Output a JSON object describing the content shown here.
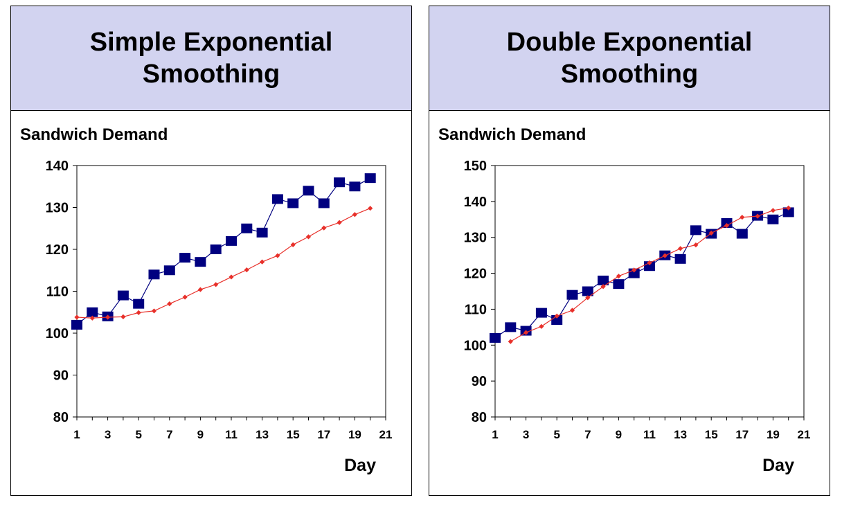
{
  "panels": [
    {
      "title_lines": [
        "Simple Exponential",
        "Smoothing"
      ],
      "subtitle": "Sandwich Demand"
    },
    {
      "title_lines": [
        "Double Exponential",
        "Smoothing"
      ],
      "subtitle": "Sandwich Demand"
    }
  ],
  "colors": {
    "header_bg": "#d2d3f0",
    "actual": "#000080",
    "forecast": "#e8302a"
  },
  "chart_data": [
    {
      "type": "line",
      "xlabel": "Day",
      "ylabel": "",
      "xlim": [
        1,
        21
      ],
      "ylim": [
        80,
        140
      ],
      "xticks": [
        1,
        3,
        5,
        7,
        9,
        11,
        13,
        15,
        17,
        19,
        21
      ],
      "yticks": [
        80,
        90,
        100,
        110,
        120,
        130,
        140
      ],
      "grid": false,
      "series": [
        {
          "marker": "square",
          "color": "#000080",
          "x": [
            1,
            2,
            3,
            4,
            5,
            6,
            7,
            8,
            9,
            10,
            11,
            12,
            13,
            14,
            15,
            16,
            17,
            18,
            19,
            20
          ],
          "values": [
            102,
            105,
            104,
            109,
            107,
            114,
            115,
            118,
            117,
            120,
            122,
            125,
            124,
            132,
            131,
            134,
            131,
            136,
            135,
            137
          ]
        },
        {
          "marker": "diamond",
          "color": "#e8302a",
          "x": [
            1,
            2,
            3,
            4,
            5,
            6,
            7,
            8,
            9,
            10,
            11,
            12,
            13,
            14,
            15,
            16,
            17,
            18,
            19,
            20
          ],
          "values": [
            103.8,
            103.6,
            103.8,
            103.9,
            104.9,
            105.3,
            107.0,
            108.6,
            110.4,
            111.6,
            113.4,
            115.1,
            117.0,
            118.5,
            121.1,
            123.0,
            125.1,
            126.4,
            128.3,
            129.8
          ]
        }
      ]
    },
    {
      "type": "line",
      "xlabel": "Day",
      "ylabel": "",
      "xlim": [
        1,
        21
      ],
      "ylim": [
        80,
        150
      ],
      "xticks": [
        1,
        3,
        5,
        7,
        9,
        11,
        13,
        15,
        17,
        19,
        21
      ],
      "yticks": [
        80,
        90,
        100,
        110,
        120,
        130,
        140,
        150
      ],
      "grid": false,
      "series": [
        {
          "marker": "square",
          "color": "#000080",
          "x": [
            1,
            2,
            3,
            4,
            5,
            6,
            7,
            8,
            9,
            10,
            11,
            12,
            13,
            14,
            15,
            16,
            17,
            18,
            19,
            20
          ],
          "values": [
            102,
            105,
            104,
            109,
            107,
            114,
            115,
            118,
            117,
            120,
            122,
            125,
            124,
            132,
            131,
            134,
            131,
            136,
            135,
            137
          ]
        },
        {
          "marker": "diamond",
          "color": "#e8302a",
          "x": [
            2,
            3,
            4,
            5,
            6,
            7,
            8,
            9,
            10,
            11,
            12,
            13,
            14,
            15,
            16,
            17,
            18,
            19,
            20
          ],
          "values": [
            101.0,
            103.5,
            105.2,
            108.1,
            109.7,
            113.2,
            116.3,
            119.2,
            120.9,
            122.9,
            124.9,
            126.9,
            127.9,
            131.2,
            133.3,
            135.6,
            135.9,
            137.5,
            138.2
          ]
        }
      ]
    }
  ]
}
